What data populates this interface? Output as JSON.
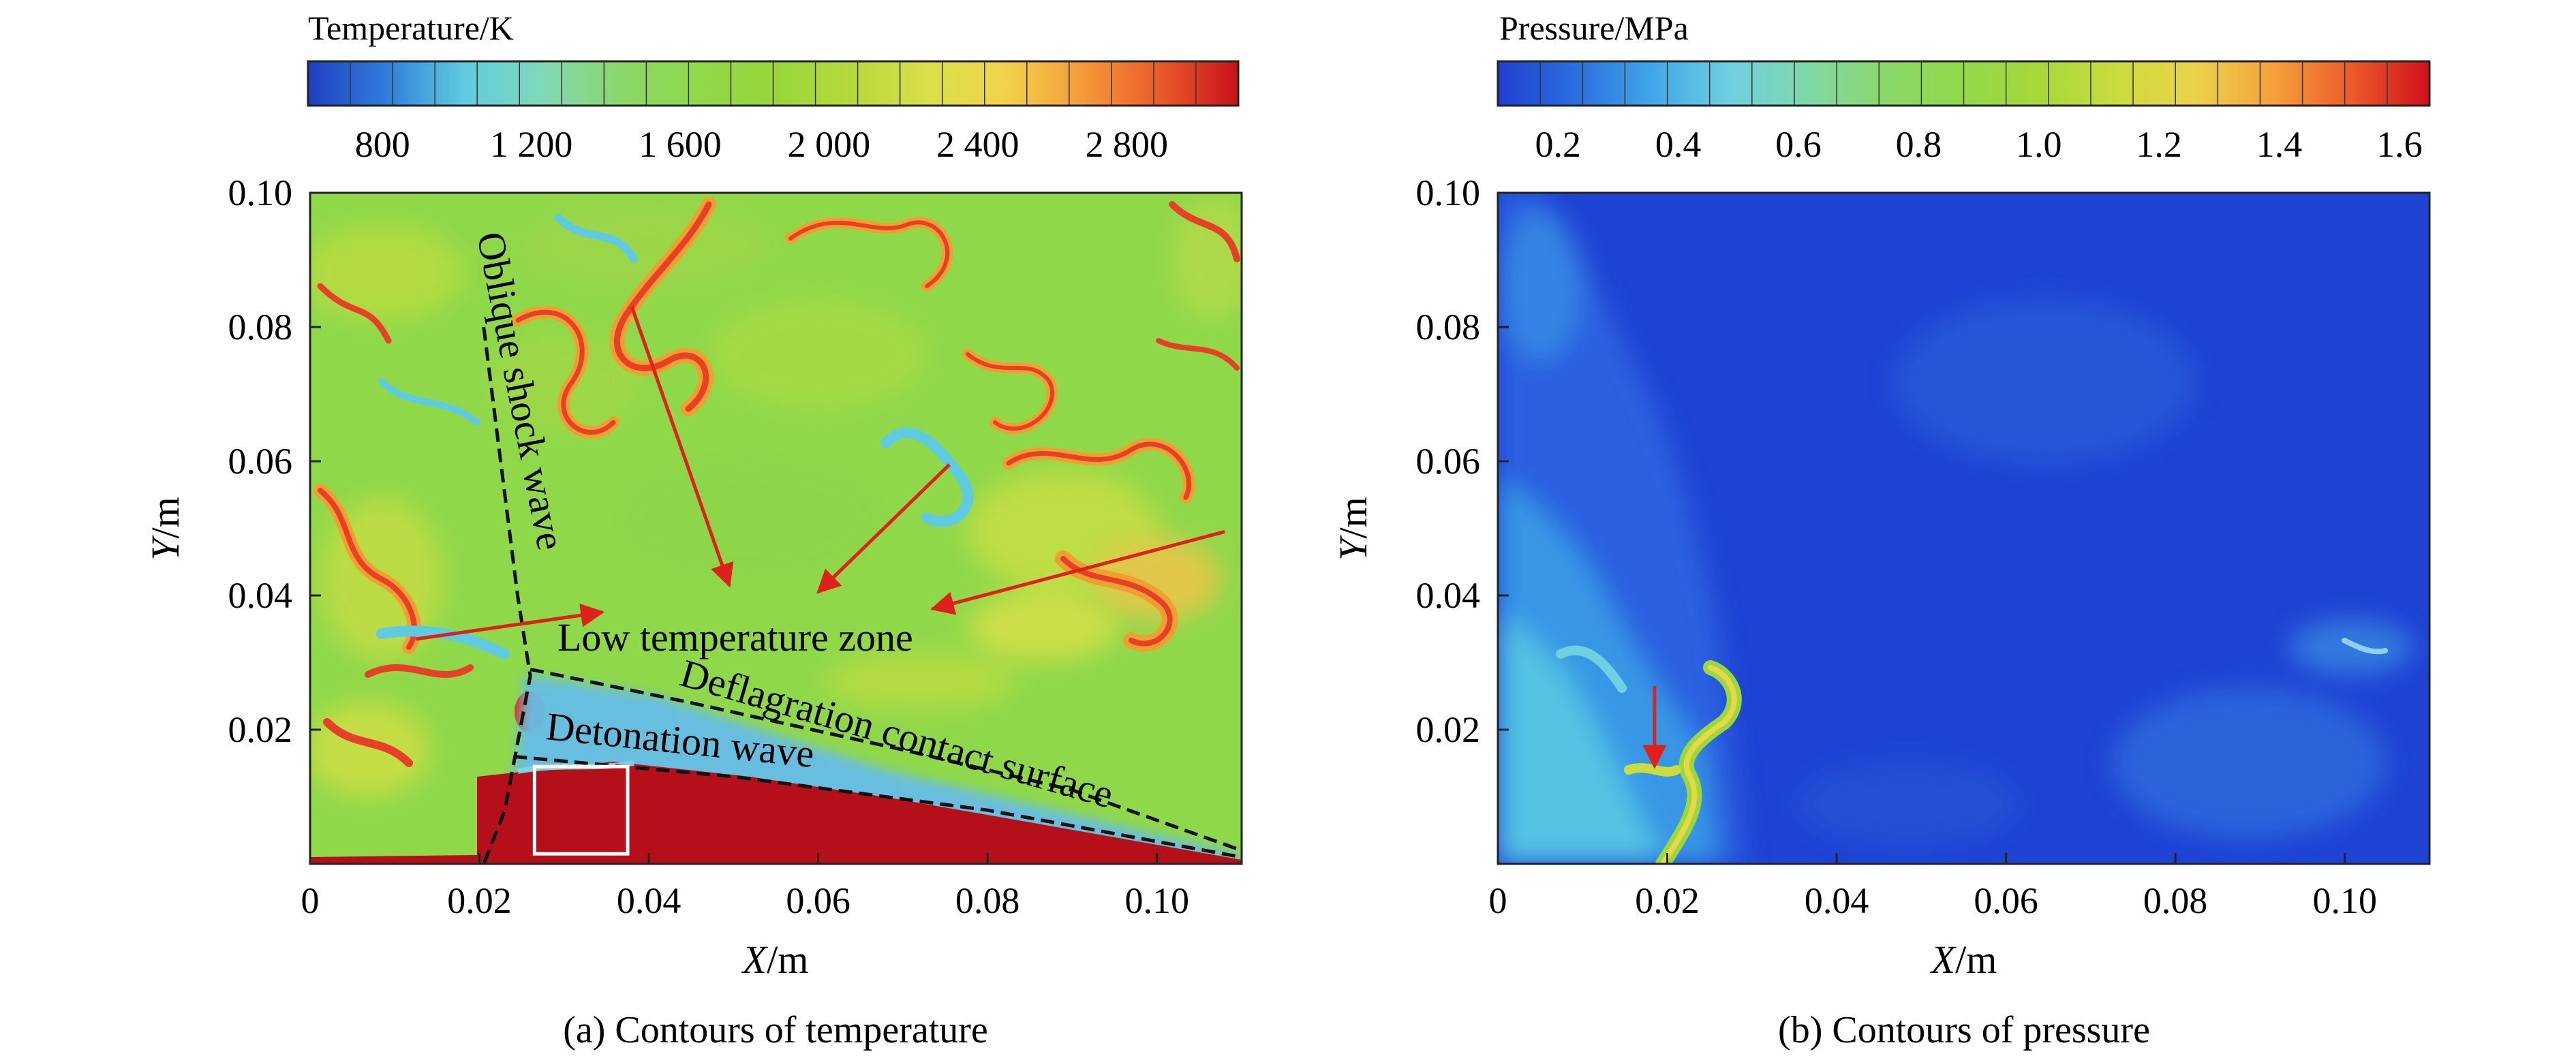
{
  "chart_data": [
    {
      "type": "heatmap",
      "caption": "(a) Contours of temperature",
      "colorbar": {
        "title": "Temperature/K",
        "ticks": [
          800,
          1200,
          1600,
          2000,
          2400,
          2800
        ],
        "tick_labels": [
          "800",
          "1 200",
          "1 600",
          "2 000",
          "2 400",
          "2 800"
        ],
        "range": [
          600,
          3100
        ],
        "colors": [
          "#1f3fbf",
          "#2f7ddc",
          "#5fcbe0",
          "#7fd9b8",
          "#8ad86a",
          "#8fd94a",
          "#98d63a",
          "#b6d93a",
          "#d9e04a",
          "#f2d24a",
          "#f59a3a",
          "#ea5a2a",
          "#c8101a"
        ]
      },
      "xlabel_italic": "X",
      "xlabel_rest": "/m",
      "ylabel_italic": "Y",
      "ylabel_rest": "/m",
      "xlim": [
        0,
        0.11
      ],
      "ylim": [
        0,
        0.1
      ],
      "xticks": [
        0,
        0.02,
        0.04,
        0.06,
        0.08,
        0.1
      ],
      "xtick_labels": [
        "0",
        "0.02",
        "0.04",
        "0.06",
        "0.08",
        "0.10"
      ],
      "yticks": [
        0.02,
        0.04,
        0.06,
        0.08,
        0.1
      ],
      "ytick_labels": [
        "0.02",
        "0.04",
        "0.06",
        "0.08",
        "0.10"
      ],
      "annotations": {
        "oblique_shock_wave": "Oblique shock wave",
        "low_temperature_zone": "Low temperature zone",
        "deflagration_contact_surface": "Deflagration contact surface",
        "detonation_wave": "Detonation wave"
      },
      "oblique_shock_line": [
        [
          0.0205,
          0.08
        ],
        [
          0.0225,
          0.06
        ],
        [
          0.0245,
          0.04
        ],
        [
          0.026,
          0.028
        ],
        [
          0.0245,
          0.018
        ],
        [
          0.023,
          0.008
        ],
        [
          0.0205,
          0.0
        ]
      ],
      "contact_surface_line": [
        [
          0.026,
          0.029
        ],
        [
          0.045,
          0.024
        ],
        [
          0.07,
          0.017
        ],
        [
          0.09,
          0.011
        ],
        [
          0.11,
          0.002
        ]
      ],
      "detonation_front_line": [
        [
          0.024,
          0.016
        ],
        [
          0.05,
          0.013
        ],
        [
          0.08,
          0.008
        ],
        [
          0.11,
          0.001
        ]
      ],
      "arrows": [
        {
          "from": [
            0.038,
            0.083
          ],
          "to": [
            0.0495,
            0.0415
          ]
        },
        {
          "from": [
            0.0755,
            0.0595
          ],
          "to": [
            0.06,
            0.0405
          ]
        },
        {
          "from": [
            0.108,
            0.0495
          ],
          "to": [
            0.0735,
            0.038
          ]
        },
        {
          "from": [
            0.0125,
            0.0335
          ],
          "to": [
            0.0345,
            0.0375
          ]
        }
      ],
      "inset_box": {
        "x0": 0.0265,
        "x1": 0.0375,
        "y0": 0.0015,
        "y1": 0.0145
      }
    },
    {
      "type": "heatmap",
      "caption": "(b) Contours of pressure",
      "colorbar": {
        "title": "Pressure/MPa",
        "ticks": [
          0.2,
          0.4,
          0.6,
          0.8,
          1.0,
          1.2,
          1.4,
          1.6
        ],
        "tick_labels": [
          "0.2",
          "0.4",
          "0.6",
          "0.8",
          "1.0",
          "1.2",
          "1.4",
          "1.6"
        ],
        "range": [
          0.1,
          1.65
        ],
        "colors": [
          "#1f3fd0",
          "#2a6ee0",
          "#40a8e8",
          "#6fd0e0",
          "#7fd9a8",
          "#8ad86a",
          "#90d948",
          "#a8d83a",
          "#cbdc3e",
          "#ecd24a",
          "#f5a03a",
          "#ec5a2a",
          "#d0101a"
        ]
      },
      "xlabel_italic": "X",
      "xlabel_rest": "/m",
      "ylabel_italic": "Y",
      "ylabel_rest": "/m",
      "xlim": [
        0,
        0.11
      ],
      "ylim": [
        0,
        0.1
      ],
      "xticks": [
        0,
        0.02,
        0.04,
        0.06,
        0.08,
        0.1
      ],
      "xtick_labels": [
        "0",
        "0.02",
        "0.04",
        "0.06",
        "0.08",
        "0.10"
      ],
      "yticks": [
        0.02,
        0.04,
        0.06,
        0.08,
        0.1
      ],
      "ytick_labels": [
        "0.02",
        "0.04",
        "0.06",
        "0.08",
        "0.10"
      ],
      "arrows": [
        {
          "from": [
            0.0185,
            0.0265
          ],
          "to": [
            0.0185,
            0.0145
          ]
        }
      ]
    }
  ]
}
